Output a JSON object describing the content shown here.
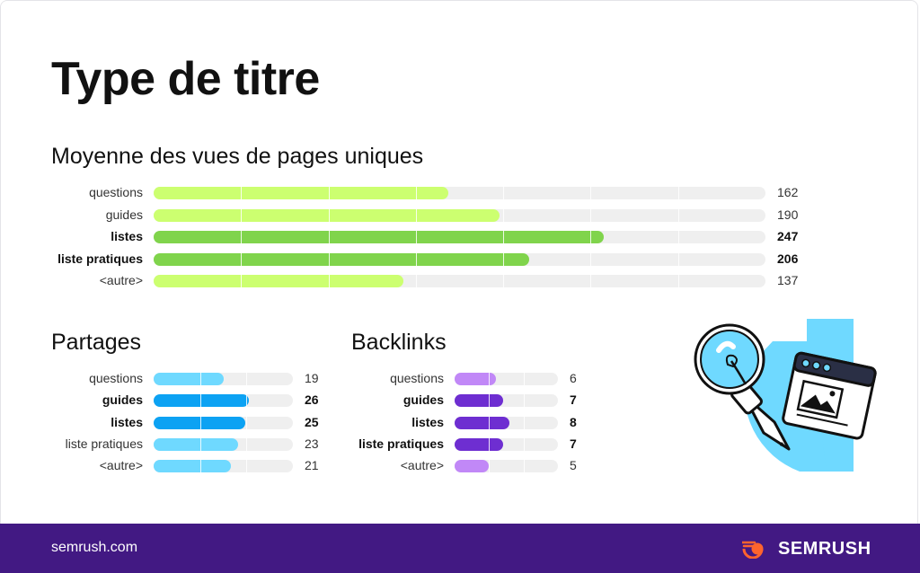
{
  "title": "Type de titre",
  "chart_data": [
    {
      "type": "bar",
      "title": "Moyenne des vues de pages uniques",
      "orientation": "horizontal",
      "categories": [
        "questions",
        "guides",
        "listes",
        "liste pratiques",
        "<autre>"
      ],
      "values": [
        162,
        190,
        247,
        206,
        137
      ],
      "highlighted": [
        false,
        false,
        true,
        true,
        false
      ],
      "xlim": [
        0,
        336
      ],
      "grid": true,
      "colors": {
        "normal": "#ccff70",
        "highlight": "#80d44c",
        "track": "#efefef"
      }
    },
    {
      "type": "bar",
      "title": "Partages",
      "orientation": "horizontal",
      "categories": [
        "questions",
        "guides",
        "listes",
        "liste pratiques",
        "<autre>"
      ],
      "values": [
        19,
        26,
        25,
        23,
        21
      ],
      "highlighted": [
        false,
        true,
        true,
        false,
        false
      ],
      "xlim": [
        0,
        38
      ],
      "grid": true,
      "colors": {
        "normal": "#6fd9ff",
        "highlight": "#0ca2f3",
        "track": "#efefef"
      }
    },
    {
      "type": "bar",
      "title": "Backlinks",
      "orientation": "horizontal",
      "categories": [
        "questions",
        "guides",
        "listes",
        "liste pratiques",
        "<autre>"
      ],
      "values": [
        6,
        7,
        8,
        7,
        5
      ],
      "highlighted": [
        false,
        true,
        true,
        true,
        false
      ],
      "xlim": [
        0,
        15
      ],
      "grid": true,
      "colors": {
        "normal": "#c188f7",
        "highlight": "#6e2ed1",
        "track": "#efefef"
      }
    }
  ],
  "footer": {
    "url": "semrush.com",
    "brand": "SEMRUSH",
    "background": "#421983"
  },
  "illustration": {
    "icon": "lightbulb-browser-icon"
  }
}
